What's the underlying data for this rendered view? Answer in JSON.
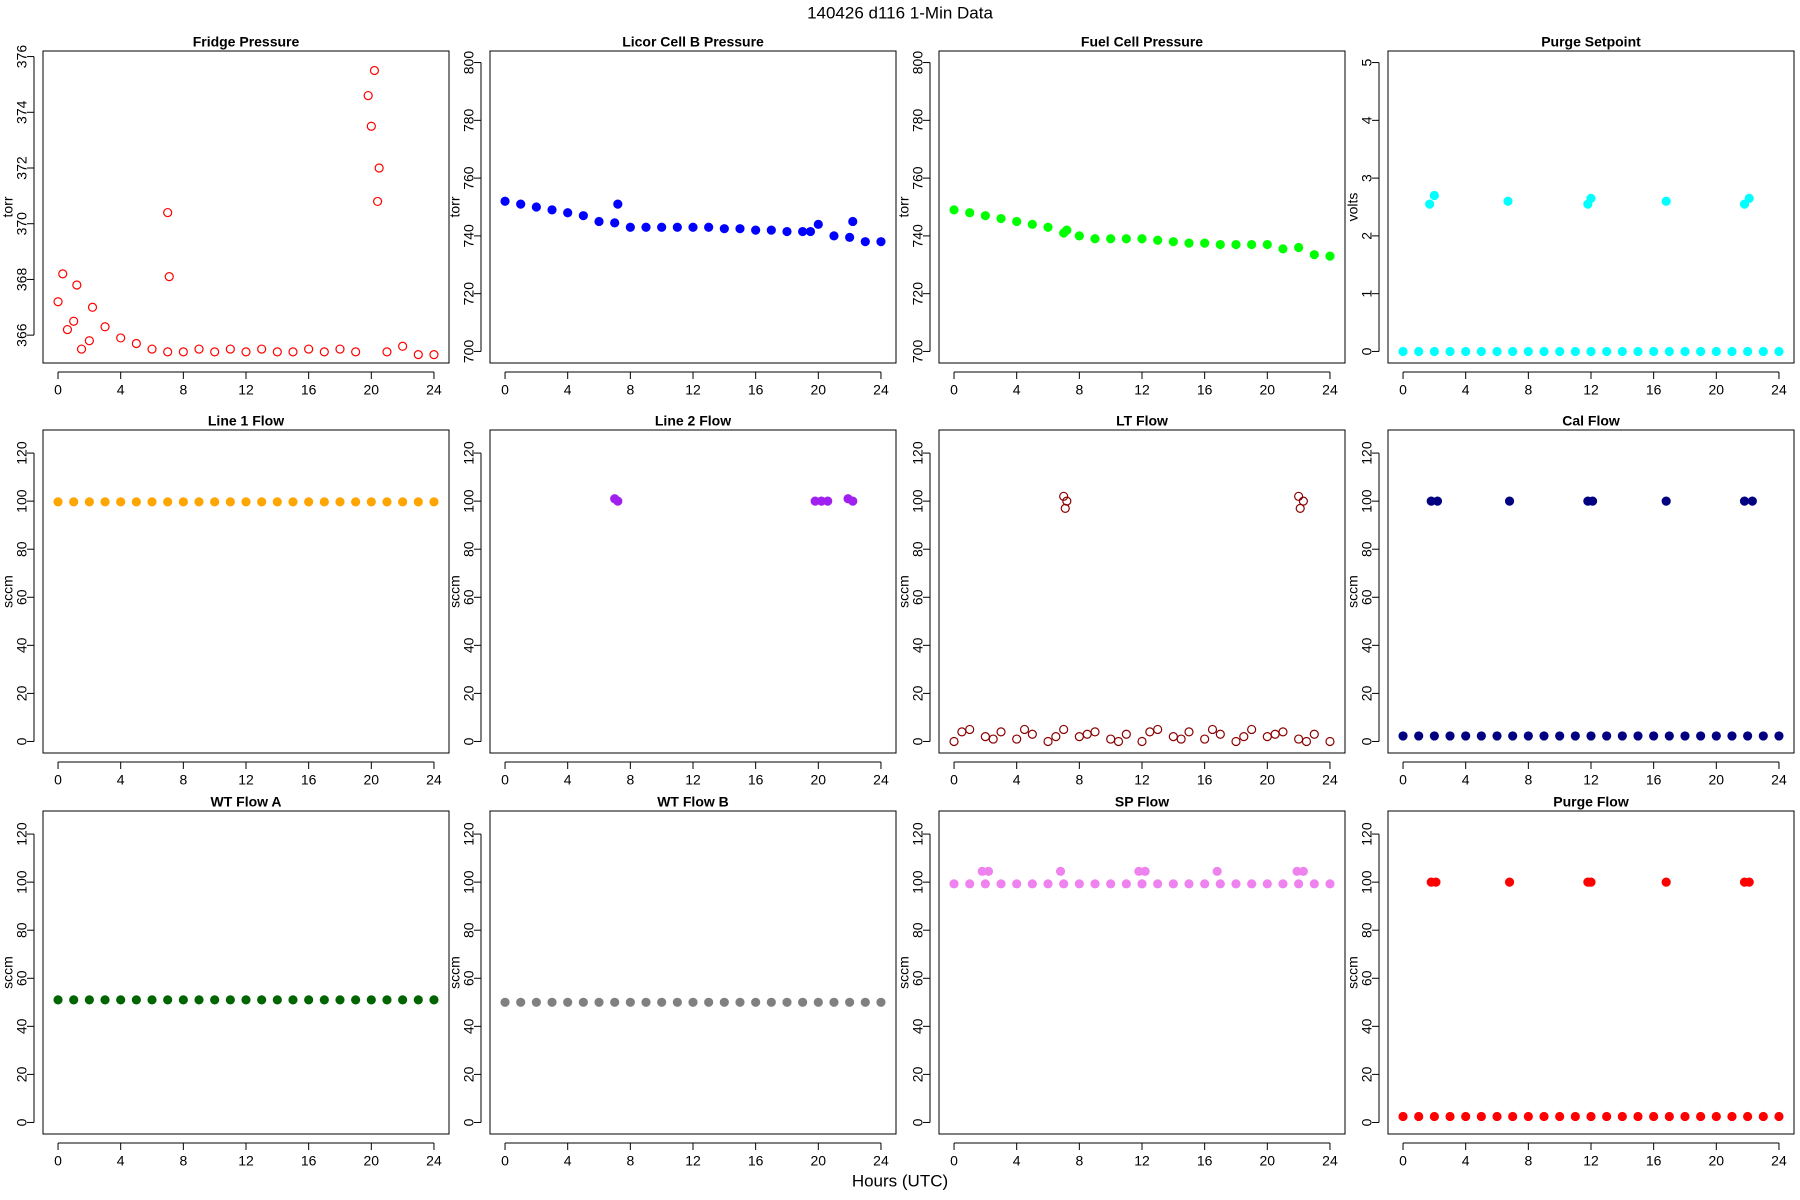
{
  "title": "140426   d116   1-Min Data",
  "xlabel": "Hours (UTC)",
  "chart_data": [
    {
      "type": "scatter",
      "title": "Fridge Pressure",
      "ylabel": "torr",
      "color": "#ff0000",
      "marker": "open",
      "x": [
        0,
        1,
        2,
        3,
        4,
        5,
        6,
        7,
        8,
        9,
        10,
        11,
        12,
        13,
        14,
        15,
        16,
        17,
        18,
        19,
        20,
        21,
        22,
        23,
        24,
        0.3,
        0.6,
        1.2,
        1.5,
        2.2,
        7,
        7.1,
        19.8,
        20.2,
        20.5,
        20.4
      ],
      "values": [
        367.2,
        366.5,
        365.8,
        366.3,
        365.9,
        365.7,
        365.5,
        365.4,
        365.4,
        365.5,
        365.4,
        365.5,
        365.4,
        365.5,
        365.4,
        365.4,
        365.5,
        365.4,
        365.5,
        365.4,
        373.5,
        365.4,
        365.6,
        365.3,
        365.3,
        368.2,
        366.2,
        367.8,
        365.5,
        367.0,
        370.4,
        368.1,
        374.6,
        375.5,
        372.0,
        370.8
      ],
      "xlim": [
        -0.96,
        24.96
      ],
      "xticks": [
        0,
        4,
        8,
        12,
        16,
        20,
        24
      ],
      "ylim": [
        365,
        376.2
      ],
      "yticks": [
        366,
        368,
        370,
        372,
        374,
        376
      ]
    },
    {
      "type": "scatter",
      "title": "Licor Cell B Pressure",
      "ylabel": "torr",
      "color": "#0000ff",
      "marker": "filled",
      "x": [
        0,
        1,
        2,
        3,
        4,
        5,
        6,
        7,
        8,
        9,
        10,
        11,
        12,
        13,
        14,
        15,
        16,
        17,
        18,
        19,
        19.5,
        20,
        21,
        22,
        23,
        24,
        7.2,
        22.2
      ],
      "values": [
        752,
        751,
        750,
        749,
        748,
        747,
        745,
        744.5,
        743,
        743,
        743,
        743,
        743,
        743,
        742.5,
        742.5,
        742,
        742,
        741.5,
        741.5,
        741.5,
        744,
        740,
        739.5,
        738,
        738,
        751,
        745
      ],
      "xlim": [
        -0.96,
        24.96
      ],
      "xticks": [
        0,
        4,
        8,
        12,
        16,
        20,
        24
      ],
      "ylim": [
        696,
        804
      ],
      "yticks": [
        700,
        720,
        740,
        760,
        780,
        800
      ]
    },
    {
      "type": "scatter",
      "title": "Fuel Cell Pressure",
      "ylabel": "torr",
      "color": "#00ff00",
      "marker": "filled",
      "x": [
        0,
        1,
        2,
        3,
        4,
        5,
        6,
        7,
        8,
        9,
        10,
        11,
        12,
        13,
        14,
        15,
        16,
        17,
        18,
        19,
        20,
        21,
        22,
        23,
        24,
        7.2
      ],
      "values": [
        749,
        748,
        747,
        746,
        745,
        744,
        743,
        741,
        740,
        739,
        739,
        739,
        739,
        738.5,
        738,
        737.5,
        737.5,
        737,
        737,
        737,
        737,
        735.5,
        736,
        733.5,
        733,
        742
      ],
      "xlim": [
        -0.96,
        24.96
      ],
      "xticks": [
        0,
        4,
        8,
        12,
        16,
        20,
        24
      ],
      "ylim": [
        696,
        804
      ],
      "yticks": [
        700,
        720,
        740,
        760,
        780,
        800
      ]
    },
    {
      "type": "scatter",
      "title": "Purge Setpoint",
      "ylabel": "volts",
      "color": "#00ffff",
      "marker": "filled",
      "x": [
        0,
        1,
        2,
        3,
        4,
        5,
        6,
        7,
        8,
        9,
        10,
        11,
        12,
        13,
        14,
        15,
        16,
        17,
        18,
        19,
        20,
        21,
        22,
        23,
        24,
        1.7,
        2.0,
        6.7,
        11.8,
        12.0,
        16.8,
        21.8,
        22.1
      ],
      "values": [
        0,
        0,
        0,
        0,
        0,
        0,
        0,
        0,
        0,
        0,
        0,
        0,
        0,
        0,
        0,
        0,
        0,
        0,
        0,
        0,
        0,
        0,
        0,
        0,
        0,
        2.55,
        2.7,
        2.6,
        2.55,
        2.65,
        2.6,
        2.55,
        2.65
      ],
      "xlim": [
        -0.96,
        24.96
      ],
      "xticks": [
        0,
        4,
        8,
        12,
        16,
        20,
        24
      ],
      "ylim": [
        -0.2,
        5.2
      ],
      "yticks": [
        0,
        1,
        2,
        3,
        4,
        5
      ]
    },
    {
      "type": "scatter",
      "title": "Line 1 Flow",
      "ylabel": "sccm",
      "color": "#ffa500",
      "marker": "filled",
      "x": [
        0,
        1,
        2,
        3,
        4,
        5,
        6,
        7,
        8,
        9,
        10,
        11,
        12,
        13,
        14,
        15,
        16,
        17,
        18,
        19,
        20,
        21,
        22,
        23,
        24
      ],
      "values": [
        99.7,
        99.7,
        99.7,
        99.7,
        99.7,
        99.7,
        99.7,
        99.7,
        99.7,
        99.7,
        99.7,
        99.7,
        99.7,
        99.7,
        99.7,
        99.7,
        99.7,
        99.7,
        99.7,
        99.7,
        99.7,
        99.7,
        99.7,
        99.7,
        99.7
      ],
      "xlim": [
        -0.96,
        24.96
      ],
      "xticks": [
        0,
        4,
        8,
        12,
        16,
        20,
        24
      ],
      "ylim": [
        -4.8,
        129.6
      ],
      "yticks": [
        0,
        20,
        40,
        60,
        80,
        100,
        120
      ]
    },
    {
      "type": "scatter",
      "title": "Line 2 Flow",
      "ylabel": "sccm",
      "color": "#a020f0",
      "marker": "filled",
      "x": [
        7.0,
        7.2,
        19.8,
        20.2,
        20.6,
        21.9,
        22.2
      ],
      "values": [
        101,
        100,
        100,
        100,
        100,
        101,
        100
      ],
      "xlim": [
        -0.96,
        24.96
      ],
      "xticks": [
        0,
        4,
        8,
        12,
        16,
        20,
        24
      ],
      "ylim": [
        -4.8,
        129.6
      ],
      "yticks": [
        0,
        20,
        40,
        60,
        80,
        100,
        120
      ]
    },
    {
      "type": "scatter",
      "title": "LT Flow",
      "ylabel": "sccm",
      "color": "#8b0000",
      "marker": "open",
      "x": [
        0,
        1,
        2,
        3,
        4,
        5,
        6,
        7,
        8,
        9,
        10,
        11,
        12,
        13,
        14,
        15,
        16,
        17,
        18,
        19,
        20,
        21,
        22,
        23,
        24,
        0.5,
        2.5,
        4.5,
        6.5,
        8.5,
        10.5,
        12.5,
        14.5,
        16.5,
        18.5,
        20.5,
        22.5,
        7,
        7.1,
        7.2,
        22,
        22.1,
        22.3
      ],
      "values": [
        0,
        5,
        2,
        4,
        1,
        3,
        0,
        5,
        2,
        4,
        1,
        3,
        0,
        5,
        2,
        4,
        1,
        3,
        0,
        5,
        2,
        4,
        1,
        3,
        0,
        4,
        1,
        5,
        2,
        3,
        0,
        4,
        1,
        5,
        2,
        3,
        0,
        102,
        97,
        100,
        102,
        97,
        100
      ],
      "xlim": [
        -0.96,
        24.96
      ],
      "xticks": [
        0,
        4,
        8,
        12,
        16,
        20,
        24
      ],
      "ylim": [
        -4.8,
        129.6
      ],
      "yticks": [
        0,
        20,
        40,
        60,
        80,
        100,
        120
      ]
    },
    {
      "type": "scatter",
      "title": "Cal Flow",
      "ylabel": "sccm",
      "color": "#000080",
      "marker": "filled",
      "x": [
        0,
        1,
        2,
        3,
        4,
        5,
        6,
        7,
        8,
        9,
        10,
        11,
        12,
        13,
        14,
        15,
        16,
        17,
        18,
        19,
        20,
        21,
        22,
        23,
        24,
        1.8,
        2.2,
        6.8,
        11.8,
        12.1,
        16.8,
        21.8,
        22.3
      ],
      "values": [
        2.3,
        2.3,
        2.3,
        2.3,
        2.3,
        2.3,
        2.3,
        2.3,
        2.3,
        2.3,
        2.3,
        2.3,
        2.3,
        2.3,
        2.3,
        2.3,
        2.3,
        2.3,
        2.3,
        2.3,
        2.3,
        2.3,
        2.3,
        2.3,
        2.3,
        100,
        100,
        100,
        100,
        100,
        100,
        100,
        100
      ],
      "xlim": [
        -0.96,
        24.96
      ],
      "xticks": [
        0,
        4,
        8,
        12,
        16,
        20,
        24
      ],
      "ylim": [
        -4.8,
        129.6
      ],
      "yticks": [
        0,
        20,
        40,
        60,
        80,
        100,
        120
      ]
    },
    {
      "type": "scatter",
      "title": "WT Flow A",
      "ylabel": "sccm",
      "color": "#006400",
      "marker": "filled",
      "x": [
        0,
        1,
        2,
        3,
        4,
        5,
        6,
        7,
        8,
        9,
        10,
        11,
        12,
        13,
        14,
        15,
        16,
        17,
        18,
        19,
        20,
        21,
        22,
        23,
        24
      ],
      "values": [
        51,
        51,
        51,
        51,
        51,
        51,
        51,
        51,
        51,
        51,
        51,
        51,
        51,
        51,
        51,
        51,
        51,
        51,
        51,
        51,
        51,
        51,
        51,
        51,
        51
      ],
      "xlim": [
        -0.96,
        24.96
      ],
      "xticks": [
        0,
        4,
        8,
        12,
        16,
        20,
        24
      ],
      "ylim": [
        -4.8,
        129.6
      ],
      "yticks": [
        0,
        20,
        40,
        60,
        80,
        100,
        120
      ]
    },
    {
      "type": "scatter",
      "title": "WT Flow B",
      "ylabel": "sccm",
      "color": "#808080",
      "marker": "filled",
      "x": [
        0,
        1,
        2,
        3,
        4,
        5,
        6,
        7,
        8,
        9,
        10,
        11,
        12,
        13,
        14,
        15,
        16,
        17,
        18,
        19,
        20,
        21,
        22,
        23,
        24
      ],
      "values": [
        50,
        50,
        50,
        50,
        50,
        50,
        50,
        50,
        50,
        50,
        50,
        50,
        50,
        50,
        50,
        50,
        50,
        50,
        50,
        50,
        50,
        50,
        50,
        50,
        50
      ],
      "xlim": [
        -0.96,
        24.96
      ],
      "xticks": [
        0,
        4,
        8,
        12,
        16,
        20,
        24
      ],
      "ylim": [
        -4.8,
        129.6
      ],
      "yticks": [
        0,
        20,
        40,
        60,
        80,
        100,
        120
      ]
    },
    {
      "type": "scatter",
      "title": "SP Flow",
      "ylabel": "sccm",
      "color": "#ee82ee",
      "marker": "filled",
      "x": [
        0,
        1,
        2,
        3,
        4,
        5,
        6,
        7,
        8,
        9,
        10,
        11,
        12,
        13,
        14,
        15,
        16,
        17,
        18,
        19,
        20,
        21,
        22,
        23,
        24,
        1.8,
        2.2,
        6.8,
        11.8,
        12.2,
        16.8,
        21.9,
        22.3
      ],
      "values": [
        99.3,
        99.3,
        99.3,
        99.3,
        99.3,
        99.3,
        99.3,
        99.3,
        99.3,
        99.3,
        99.3,
        99.3,
        99.3,
        99.3,
        99.3,
        99.3,
        99.3,
        99.3,
        99.3,
        99.3,
        99.3,
        99.3,
        99.3,
        99.3,
        99.3,
        104.5,
        104.5,
        104.5,
        104.5,
        104.5,
        104.5,
        104.5,
        104.5
      ],
      "xlim": [
        -0.96,
        24.96
      ],
      "xticks": [
        0,
        4,
        8,
        12,
        16,
        20,
        24
      ],
      "ylim": [
        -4.8,
        129.6
      ],
      "yticks": [
        0,
        20,
        40,
        60,
        80,
        100,
        120
      ]
    },
    {
      "type": "scatter",
      "title": "Purge Flow",
      "ylabel": "sccm",
      "color": "#ff0000",
      "marker": "filled",
      "x": [
        0,
        1,
        2,
        3,
        4,
        5,
        6,
        7,
        8,
        9,
        10,
        11,
        12,
        13,
        14,
        15,
        16,
        17,
        18,
        19,
        20,
        21,
        22,
        23,
        24,
        1.8,
        2.1,
        6.8,
        11.8,
        12.0,
        16.8,
        21.8,
        22.1
      ],
      "values": [
        2.5,
        2.5,
        2.5,
        2.5,
        2.5,
        2.5,
        2.5,
        2.5,
        2.5,
        2.5,
        2.5,
        2.5,
        2.5,
        2.5,
        2.5,
        2.5,
        2.5,
        2.5,
        2.5,
        2.5,
        2.5,
        2.5,
        2.5,
        2.5,
        2.5,
        100,
        100,
        100,
        100,
        100,
        100,
        100,
        100
      ],
      "xlim": [
        -0.96,
        24.96
      ],
      "xticks": [
        0,
        4,
        8,
        12,
        16,
        20,
        24
      ],
      "ylim": [
        -4.8,
        129.6
      ],
      "yticks": [
        0,
        20,
        40,
        60,
        80,
        100,
        120
      ]
    }
  ]
}
